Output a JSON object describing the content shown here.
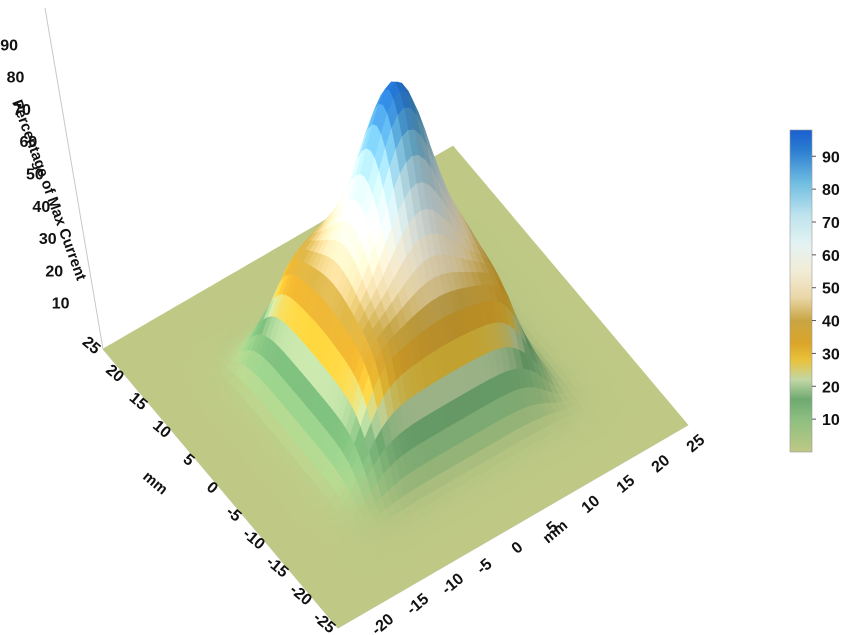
{
  "chart_data": {
    "type": "surface3d",
    "title": "",
    "zlabel": "Percentage of Max Current",
    "xlabel": "mm",
    "ylabel": "mm",
    "x_ticks": [
      "-20",
      "-15",
      "-10",
      "-5",
      "0",
      "5",
      "10",
      "15",
      "20",
      "25"
    ],
    "y_ticks": [
      "-25",
      "-20",
      "-15",
      "-10",
      "-5",
      "0",
      "5",
      "10",
      "15",
      "20",
      "25"
    ],
    "z_ticks": [
      "10",
      "20",
      "30",
      "40",
      "50",
      "60",
      "70",
      "80",
      "90"
    ],
    "xlim": [
      -25,
      25
    ],
    "ylim": [
      -25,
      25
    ],
    "zlim": [
      0,
      95
    ],
    "colorbar": {
      "ticks": [
        "10",
        "20",
        "30",
        "40",
        "50",
        "60",
        "70",
        "80",
        "90"
      ],
      "range": [
        0,
        98
      ],
      "stops": [
        {
          "value": 0,
          "color": "#bfc985"
        },
        {
          "value": 10,
          "color": "#8dbf80"
        },
        {
          "value": 16,
          "color": "#6eaa70"
        },
        {
          "value": 22,
          "color": "#c2d7a4"
        },
        {
          "value": 28,
          "color": "#e8c23a"
        },
        {
          "value": 33,
          "color": "#dba52a"
        },
        {
          "value": 40,
          "color": "#c8a542"
        },
        {
          "value": 47,
          "color": "#ead7a8"
        },
        {
          "value": 55,
          "color": "#f2ecd6"
        },
        {
          "value": 63,
          "color": "#e4f3f2"
        },
        {
          "value": 72,
          "color": "#bfe3ee"
        },
        {
          "value": 82,
          "color": "#6fbde1"
        },
        {
          "value": 92,
          "color": "#2a7cd0"
        },
        {
          "value": 98,
          "color": "#1a5fd0"
        }
      ]
    },
    "surface": {
      "description_values": "Flat plateau near 0% across the plane; square-ish mesa about 40% tall over roughly x,y in [-12, 12] mm; central peak rising to about 95% at x=0, y=0.",
      "plateau_level": 40,
      "plateau_half_width_mm": 12,
      "peak_level": 95,
      "peak_center": [
        0,
        0
      ],
      "floor_level": 0
    }
  }
}
